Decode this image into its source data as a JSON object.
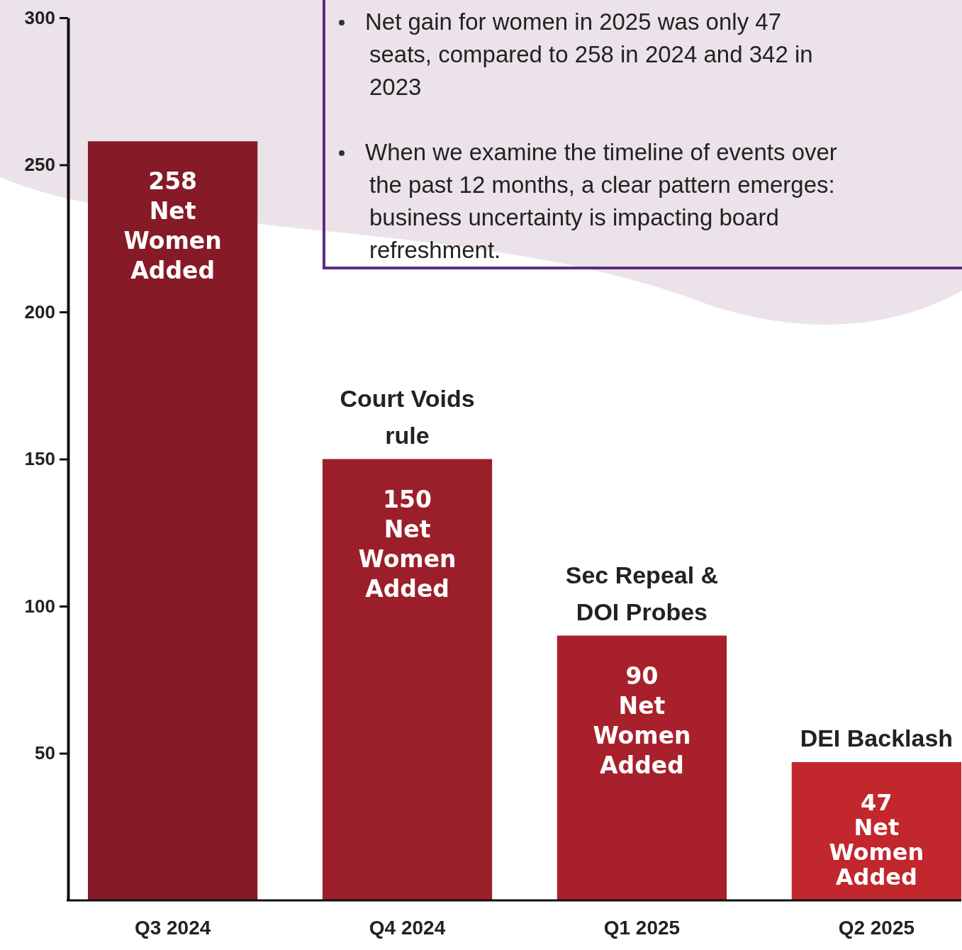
{
  "chart_data": {
    "type": "bar",
    "categories": [
      "Q3 2024",
      "Q4 2024",
      "Q1 2025",
      "Q2 2025"
    ],
    "values": [
      258,
      150,
      90,
      47
    ],
    "colors": [
      "#861a26",
      "#9b1f2b",
      "#a8202b",
      "#c1272d"
    ],
    "value_labels": [
      "258 Net Women Added",
      "150 Net Women Added",
      "90 Net Women Added",
      "47 Net Women Added"
    ],
    "ylim": [
      0,
      300
    ],
    "yticks": [
      50,
      100,
      150,
      200,
      250,
      300
    ],
    "grid": false,
    "annotations": [
      {
        "text": "Court Voids rule",
        "x": "Q4 2024",
        "y": 150
      },
      {
        "text": "Sec Repeal & DOI Probes",
        "x": "Q1 2025",
        "y": 90
      },
      {
        "text": "DEI Backlash",
        "x": "Q2 2025",
        "y": 47
      },
      "Net gain for women in 2025 was only 47 seats, compared to 258 in 2024 and 342 in 2023",
      "When we examine the timeline of events over the past 12 months, a clear pattern emerges: business uncertainty is impacting board refreshment."
    ]
  }
}
